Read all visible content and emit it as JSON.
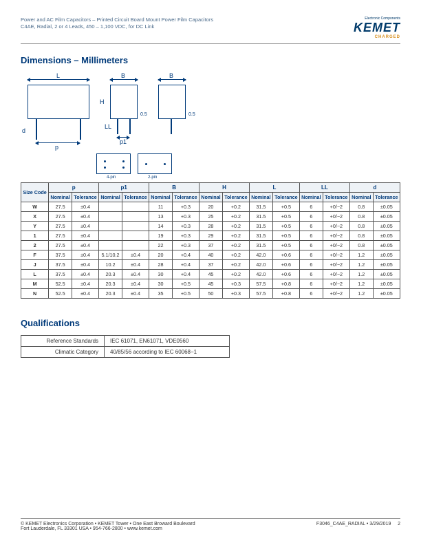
{
  "header": {
    "line1": "Power and AC Film Capacitors – Printed Circuit Board Mount Power Film Capacitors",
    "line2": "C4AE, Radial, 2 or 4 Leads, 450 – 1,100 VDC, for DC Link",
    "logo_top": "Electronic Components",
    "logo_name": "KEMET",
    "logo_charged": "CHARGED"
  },
  "sections": {
    "dimensions_title": "Dimensions – Millimeters",
    "qualifications_title": "Qualifications"
  },
  "diagram_labels": {
    "L": "L",
    "B": "B",
    "H": "H",
    "p": "p",
    "p1": "p1",
    "d": "d",
    "LL": "LL",
    "half": "0.5",
    "four_pin": "4-pin",
    "two_pin": "2-pin"
  },
  "dims_table": {
    "size_code_header": "Size Code",
    "params": [
      "p",
      "p1",
      "B",
      "H",
      "L",
      "LL",
      "d"
    ],
    "sub_headers": {
      "nominal": "Nominal",
      "tolerance": "Tolerance"
    },
    "rows": [
      {
        "code": "W",
        "p": [
          "27.5",
          "±0.4"
        ],
        "p1": [
          "",
          ""
        ],
        "B": [
          "11",
          "+0.3"
        ],
        "H": [
          "20",
          "+0.2"
        ],
        "L": [
          "31.5",
          "+0.5"
        ],
        "LL": [
          "6",
          "+0/−2"
        ],
        "d": [
          "0.8",
          "±0.05"
        ]
      },
      {
        "code": "X",
        "p": [
          "27.5",
          "±0.4"
        ],
        "p1": [
          "",
          ""
        ],
        "B": [
          "13",
          "+0.3"
        ],
        "H": [
          "25",
          "+0.2"
        ],
        "L": [
          "31.5",
          "+0.5"
        ],
        "LL": [
          "6",
          "+0/−2"
        ],
        "d": [
          "0.8",
          "±0.05"
        ]
      },
      {
        "code": "Y",
        "p": [
          "27.5",
          "±0.4"
        ],
        "p1": [
          "",
          ""
        ],
        "B": [
          "14",
          "+0.3"
        ],
        "H": [
          "28",
          "+0.2"
        ],
        "L": [
          "31.5",
          "+0.5"
        ],
        "LL": [
          "6",
          "+0/−2"
        ],
        "d": [
          "0.8",
          "±0.05"
        ]
      },
      {
        "code": "1",
        "p": [
          "27.5",
          "±0.4"
        ],
        "p1": [
          "",
          ""
        ],
        "B": [
          "19",
          "+0.3"
        ],
        "H": [
          "29",
          "+0.2"
        ],
        "L": [
          "31.5",
          "+0.5"
        ],
        "LL": [
          "6",
          "+0/−2"
        ],
        "d": [
          "0.8",
          "±0.05"
        ]
      },
      {
        "code": "2",
        "p": [
          "27.5",
          "±0.4"
        ],
        "p1": [
          "",
          ""
        ],
        "B": [
          "22",
          "+0.3"
        ],
        "H": [
          "37",
          "+0.2"
        ],
        "L": [
          "31.5",
          "+0.5"
        ],
        "LL": [
          "6",
          "+0/−2"
        ],
        "d": [
          "0.8",
          "±0.05"
        ]
      },
      {
        "code": "F",
        "p": [
          "37.5",
          "±0.4"
        ],
        "p1": [
          "5.1/10.2",
          "±0.4"
        ],
        "B": [
          "20",
          "+0.4"
        ],
        "H": [
          "40",
          "+0.2"
        ],
        "L": [
          "42.0",
          "+0.6"
        ],
        "LL": [
          "6",
          "+0/−2"
        ],
        "d": [
          "1.2",
          "±0.05"
        ]
      },
      {
        "code": "J",
        "p": [
          "37.5",
          "±0.4"
        ],
        "p1": [
          "10.2",
          "±0.4"
        ],
        "B": [
          "28",
          "+0.4"
        ],
        "H": [
          "37",
          "+0.2"
        ],
        "L": [
          "42.0",
          "+0.6"
        ],
        "LL": [
          "6",
          "+0/−2"
        ],
        "d": [
          "1.2",
          "±0.05"
        ]
      },
      {
        "code": "L",
        "p": [
          "37.5",
          "±0.4"
        ],
        "p1": [
          "20.3",
          "±0.4"
        ],
        "B": [
          "30",
          "+0.4"
        ],
        "H": [
          "45",
          "+0.2"
        ],
        "L": [
          "42.0",
          "+0.6"
        ],
        "LL": [
          "6",
          "+0/−2"
        ],
        "d": [
          "1.2",
          "±0.05"
        ]
      },
      {
        "code": "M",
        "p": [
          "52.5",
          "±0.4"
        ],
        "p1": [
          "20.3",
          "±0.4"
        ],
        "B": [
          "30",
          "+0.5"
        ],
        "H": [
          "45",
          "+0.3"
        ],
        "L": [
          "57.5",
          "+0.8"
        ],
        "LL": [
          "6",
          "+0/−2"
        ],
        "d": [
          "1.2",
          "±0.05"
        ]
      },
      {
        "code": "N",
        "p": [
          "52.5",
          "±0.4"
        ],
        "p1": [
          "20.3",
          "±0.4"
        ],
        "B": [
          "35",
          "+0.5"
        ],
        "H": [
          "50",
          "+0.3"
        ],
        "L": [
          "57.5",
          "+0.8"
        ],
        "LL": [
          "6",
          "+0/−2"
        ],
        "d": [
          "1.2",
          "±0.05"
        ]
      }
    ]
  },
  "qual_table": {
    "rows": [
      {
        "label": "Reference Standards",
        "value": "IEC 61071, EN61071, VDE0560"
      },
      {
        "label": "Climatic Category",
        "value": "40/85/56 according to IEC 60068−1"
      }
    ]
  },
  "footer": {
    "left1": "© KEMET Electronics Corporation • KEMET Tower • One East Broward Boulevard",
    "left2": "Fort Lauderdale, FL 33301 USA • 954-766-2800 • www.kemet.com",
    "right": "F3046_C4AE_RADIAL • 3/29/2019",
    "page": "2"
  }
}
